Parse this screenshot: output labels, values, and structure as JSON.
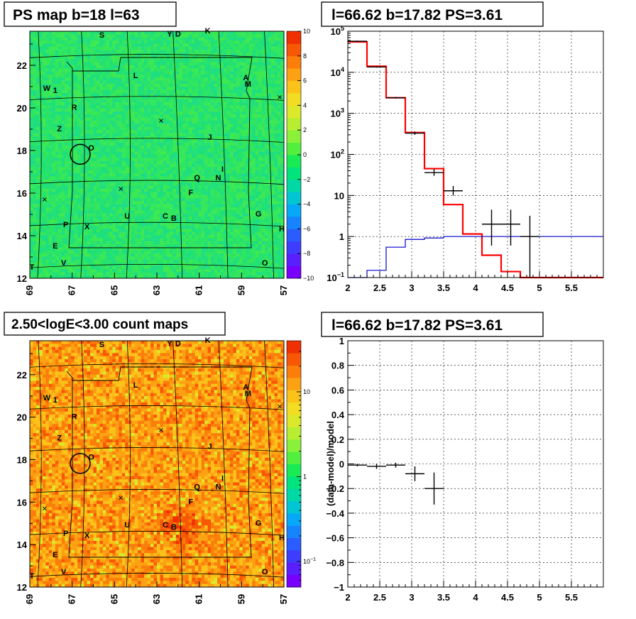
{
  "panels": [
    {
      "title": "PS map b=18 l=63",
      "kind": "map",
      "map_style": "ps",
      "colorbar": {
        "scale": "linear",
        "range": [
          -10,
          10
        ],
        "ticks": [
          "10",
          "8",
          "6",
          "4",
          "2",
          "0",
          "−2",
          "−4",
          "−6",
          "−8",
          "−10"
        ]
      },
      "xaxis": {
        "range": [
          69,
          57
        ],
        "ticks": [
          "69",
          "67",
          "65",
          "63",
          "61",
          "59",
          "57"
        ]
      },
      "yaxis": {
        "range": [
          12,
          23.6
        ],
        "ticks": [
          "12",
          "14",
          "16",
          "18",
          "20",
          "22"
        ]
      },
      "sources": [
        {
          "label": "S",
          "l": 65.6,
          "b": 23.3
        },
        {
          "label": "Y",
          "l": 62.4,
          "b": 23.35
        },
        {
          "label": "D",
          "l": 62.0,
          "b": 23.35
        },
        {
          "label": "K",
          "l": 60.6,
          "b": 23.5
        },
        {
          "label": "L",
          "l": 64.0,
          "b": 21.4
        },
        {
          "label": "A",
          "l": 58.8,
          "b": 21.3
        },
        {
          "label": "M",
          "l": 58.7,
          "b": 21.0
        },
        {
          "label": "W",
          "l": 68.2,
          "b": 20.8
        },
        {
          "label": "1",
          "l": 67.8,
          "b": 20.7
        },
        {
          "label": "R",
          "l": 66.9,
          "b": 19.9
        },
        {
          "label": "Z",
          "l": 67.6,
          "b": 18.9
        },
        {
          "label": "J",
          "l": 60.5,
          "b": 18.5
        },
        {
          "label": "O",
          "l": 66.1,
          "b": 18.0
        },
        {
          "label": "I",
          "l": 59.9,
          "b": 17.0
        },
        {
          "label": "Q",
          "l": 61.1,
          "b": 16.6
        },
        {
          "label": "N",
          "l": 60.1,
          "b": 16.6
        },
        {
          "label": "F",
          "l": 61.4,
          "b": 15.9
        },
        {
          "label": "U",
          "l": 64.4,
          "b": 14.8
        },
        {
          "label": "C",
          "l": 62.6,
          "b": 14.8
        },
        {
          "label": "B",
          "l": 62.2,
          "b": 14.7
        },
        {
          "label": "G",
          "l": 58.2,
          "b": 14.9
        },
        {
          "label": "P",
          "l": 67.3,
          "b": 14.4
        },
        {
          "label": "X",
          "l": 66.3,
          "b": 14.3
        },
        {
          "label": "H",
          "l": 57.1,
          "b": 14.2
        },
        {
          "label": "E",
          "l": 67.8,
          "b": 13.4
        },
        {
          "label": "V",
          "l": 67.4,
          "b": 12.6
        },
        {
          "label": "O",
          "l": 57.9,
          "b": 12.6
        },
        {
          "label": "T",
          "l": 68.9,
          "b": 12.4
        }
      ]
    },
    {
      "title": "l=66.62 b=17.82 PS=3.61",
      "kind": "spectrum",
      "chart_data": {
        "type": "line",
        "xlim": [
          2,
          6
        ],
        "ylim_log": [
          0.1,
          100000
        ],
        "yscale": "log",
        "xticks": [
          "2",
          "2.5",
          "3",
          "3.5",
          "4",
          "4.5",
          "5",
          "5.5"
        ],
        "yticks": [
          {
            "v": 100000,
            "label": "10",
            "sup": "5"
          },
          {
            "v": 10000,
            "label": "10",
            "sup": "4"
          },
          {
            "v": 1000,
            "label": "10",
            "sup": "3"
          },
          {
            "v": 100,
            "label": "10",
            "sup": "2"
          },
          {
            "v": 10,
            "label": "10",
            "sup": ""
          },
          {
            "v": 1,
            "label": "1",
            "sup": ""
          },
          {
            "v": 0.1,
            "label": "10",
            "sup": "−1"
          }
        ],
        "grid": true,
        "series": [
          {
            "color": "#ff0000",
            "kind": "step",
            "bin_edges": [
              2.0,
              2.3,
              2.6,
              2.9,
              3.2,
              3.5,
              3.8,
              4.1,
              4.4,
              4.7,
              5.0,
              6.0
            ],
            "values": [
              55000,
              14000,
              2400,
              340,
              45,
              6,
              1.15,
              0.35,
              0.14,
              0.1,
              0.1
            ]
          },
          {
            "color": "#0000cc",
            "kind": "step",
            "bin_edges": [
              2.0,
              2.3,
              2.6,
              2.9,
              3.2,
              3.5,
              3.8,
              4.1,
              4.4,
              4.7,
              5.0,
              6.0
            ],
            "values": [
              0.09,
              0.15,
              0.55,
              0.85,
              0.92,
              1.0,
              1.0,
              1.0,
              1.0,
              1.0,
              1.0
            ]
          },
          {
            "color": "#000000",
            "kind": "points",
            "points": [
              {
                "x": 2.15,
                "y": 57000,
                "xerr": 0.15,
                "ylo": 55000,
                "yhi": 59000
              },
              {
                "x": 2.45,
                "y": 13500,
                "xerr": 0.15,
                "ylo": 13000,
                "yhi": 14000
              },
              {
                "x": 2.75,
                "y": 2400,
                "xerr": 0.15,
                "ylo": 2300,
                "yhi": 2500
              },
              {
                "x": 3.05,
                "y": 330,
                "xerr": 0.15,
                "ylo": 300,
                "yhi": 360
              },
              {
                "x": 3.35,
                "y": 36,
                "xerr": 0.15,
                "ylo": 30,
                "yhi": 44
              },
              {
                "x": 3.65,
                "y": 13,
                "xerr": 0.15,
                "ylo": 10,
                "yhi": 17
              },
              {
                "x": 4.25,
                "y": 2,
                "xerr": 0.15,
                "ylo": 0.6,
                "yhi": 4.5
              },
              {
                "x": 4.55,
                "y": 2,
                "xerr": 0.15,
                "ylo": 0.6,
                "yhi": 4.5
              },
              {
                "x": 4.85,
                "y": 1,
                "xerr": 0.15,
                "ylo": 0.1,
                "yhi": 3.2
              }
            ]
          }
        ]
      }
    },
    {
      "title": "2.50<logE<3.00 count maps",
      "kind": "map",
      "map_style": "counts",
      "colorbar": {
        "scale": "log",
        "labels": [
          {
            "v": 10,
            "label": "10",
            "sup": ""
          },
          {
            "v": 1,
            "label": "1",
            "sup": ""
          },
          {
            "v": 0.1,
            "label": "10",
            "sup": "−1"
          }
        ],
        "range_log": [
          0.05,
          40
        ]
      },
      "xaxis": {
        "range": [
          69,
          57
        ],
        "ticks": [
          "69",
          "67",
          "65",
          "63",
          "61",
          "59",
          "57"
        ]
      },
      "yaxis": {
        "range": [
          12,
          23.6
        ],
        "ticks": [
          "12",
          "14",
          "16",
          "18",
          "20",
          "22"
        ]
      }
    },
    {
      "title": "l=66.62 b=17.82 PS=3.61",
      "kind": "residual",
      "chart_data": {
        "type": "scatter",
        "xlim": [
          2,
          6
        ],
        "ylim": [
          -1,
          1
        ],
        "ylabel": "(data-model)/model",
        "xticks": [
          "2",
          "2.5",
          "3",
          "3.5",
          "4",
          "4.5",
          "5",
          "5.5"
        ],
        "yticks": [
          "1",
          "0.8",
          "0.6",
          "0.4",
          "0.2",
          "0",
          "−0.2",
          "−0.4",
          "−0.6",
          "−0.8",
          "−1"
        ],
        "grid": true,
        "points": [
          {
            "x": 2.15,
            "y": -0.01,
            "xerr": 0.15,
            "yerr": 0.01
          },
          {
            "x": 2.45,
            "y": -0.02,
            "xerr": 0.15,
            "yerr": 0.02
          },
          {
            "x": 2.75,
            "y": -0.01,
            "xerr": 0.15,
            "yerr": 0.02
          },
          {
            "x": 3.05,
            "y": -0.08,
            "xerr": 0.15,
            "yerr": 0.06
          },
          {
            "x": 3.35,
            "y": -0.2,
            "xerr": 0.15,
            "yerr": 0.13
          }
        ]
      }
    }
  ]
}
